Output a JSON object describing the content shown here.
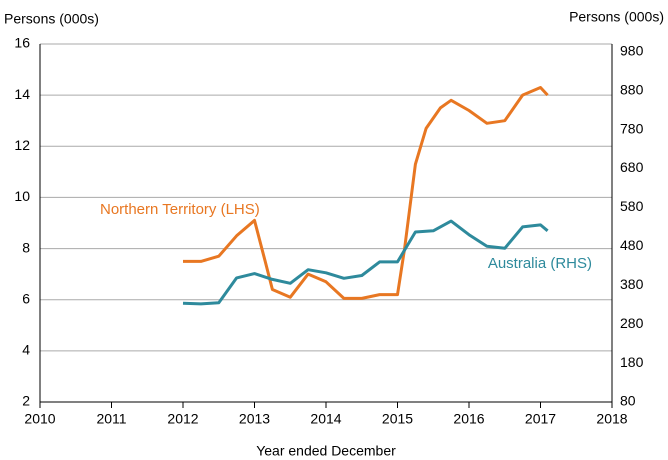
{
  "chart_data": {
    "type": "line",
    "y_label": "Persons (000s)",
    "y2_label": "Persons (000s)",
    "x_label": "Year ended December",
    "xlim": [
      2010,
      2018
    ],
    "xticks": [
      2010,
      2011,
      2012,
      2013,
      2014,
      2015,
      2016,
      2017,
      2018
    ],
    "ylim": [
      2,
      16
    ],
    "yticks": [
      2,
      4,
      6,
      8,
      10,
      12,
      14,
      16
    ],
    "y2lim": [
      80,
      1000
    ],
    "y2ticks": [
      80,
      180,
      280,
      380,
      480,
      580,
      680,
      780,
      880,
      980
    ],
    "grid": true,
    "series": [
      {
        "name": "Northern Territory (LHS)",
        "color": "#e87722",
        "x": [
          2012.0,
          2012.25,
          2012.5,
          2012.75,
          2013.0,
          2013.15,
          2013.25,
          2013.5,
          2013.75,
          2014.0,
          2014.25,
          2014.5,
          2014.75,
          2015.0,
          2015.1,
          2015.25,
          2015.4,
          2015.6,
          2015.75,
          2016.0,
          2016.25,
          2016.5,
          2016.75,
          2017.0,
          2017.1
        ],
        "values": [
          7.5,
          7.5,
          7.7,
          8.5,
          9.1,
          7.5,
          6.4,
          6.1,
          7.0,
          6.7,
          6.05,
          6.05,
          6.2,
          6.2,
          8.0,
          11.3,
          12.7,
          13.5,
          13.8,
          13.4,
          12.9,
          13.0,
          14.0,
          14.3,
          14.0
        ]
      },
      {
        "name": "Australia (RHS)",
        "color": "#2e8a9c",
        "axis": "y2",
        "x": [
          2012.0,
          2012.25,
          2012.5,
          2012.75,
          2013.0,
          2013.25,
          2013.5,
          2013.75,
          2014.0,
          2014.25,
          2014.5,
          2014.75,
          2015.0,
          2015.25,
          2015.5,
          2015.75,
          2016.0,
          2016.25,
          2016.5,
          2016.75,
          2017.0,
          2017.1
        ],
        "values": [
          334,
          332,
          335,
          399,
          410,
          395,
          385,
          420,
          412,
          398,
          405,
          440,
          440,
          517,
          520,
          545,
          510,
          480,
          475,
          530,
          535,
          520
        ]
      }
    ]
  }
}
